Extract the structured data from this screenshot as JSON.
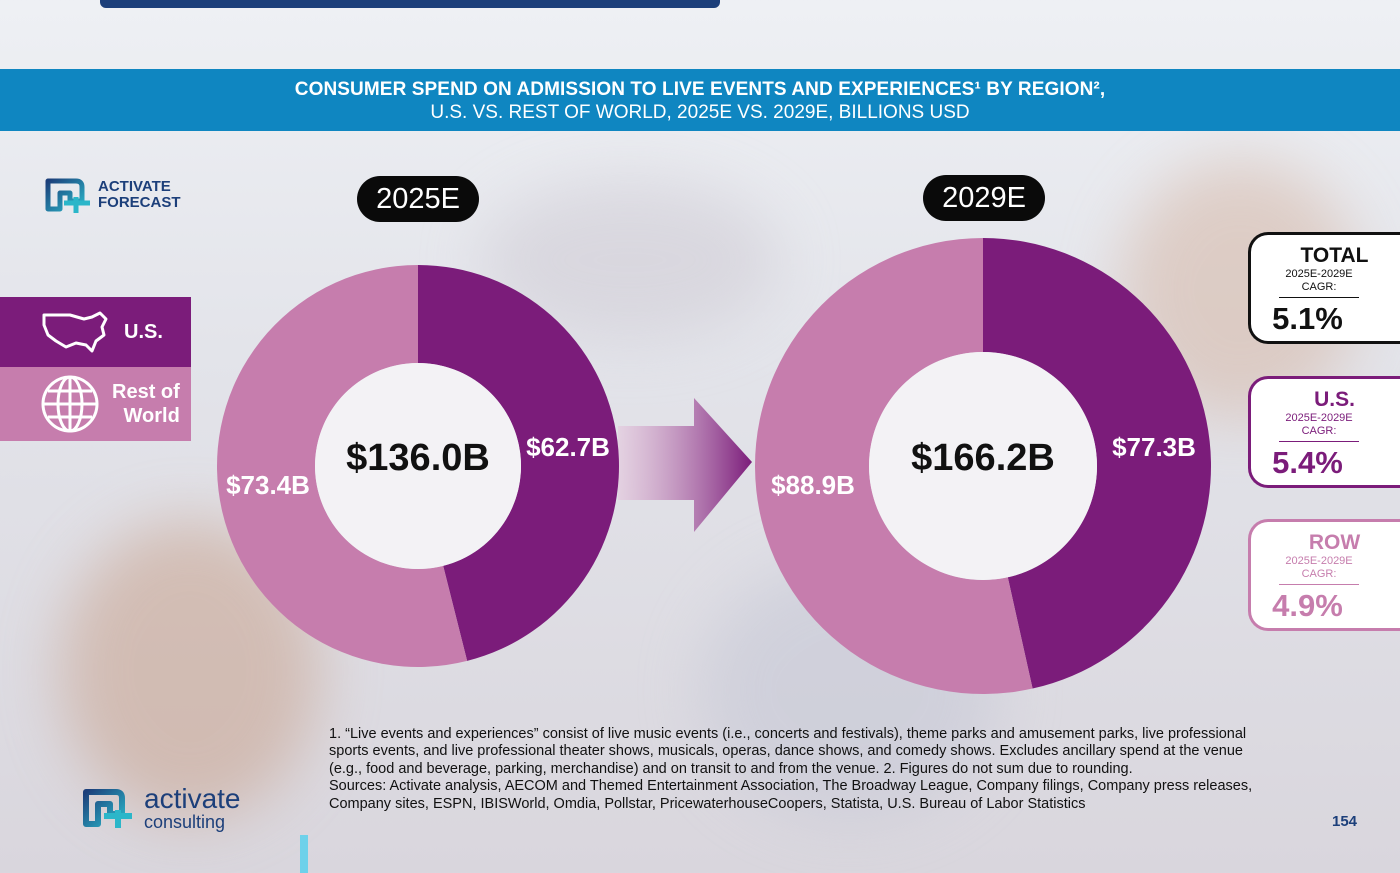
{
  "banner": {
    "line1": "CONSUMER SPEND ON ADMISSION TO LIVE EVENTS AND EXPERIENCES¹ BY REGION²,",
    "line2": "U.S. VS. REST OF WORLD, 2025E VS. 2029E, BILLIONS USD"
  },
  "forecast_badge": {
    "line1": "ACTIVATE",
    "line2": "FORECAST"
  },
  "legend": {
    "us": "U.S.",
    "row_line1": "Rest of",
    "row_line2": "World"
  },
  "colors": {
    "us": "#7b1c7a",
    "row": "#c67dad",
    "banner": "#0f86c1",
    "navy": "#1c3f7a"
  },
  "chart_data": [
    {
      "type": "pie",
      "title": "2025E",
      "total_label": "$136.0B",
      "categories": [
        "U.S.",
        "Rest of World"
      ],
      "values": [
        62.7,
        73.4
      ],
      "data_labels": [
        "$62.7B",
        "$73.4B"
      ]
    },
    {
      "type": "pie",
      "title": "2029E",
      "total_label": "$166.2B",
      "categories": [
        "U.S.",
        "Rest of World"
      ],
      "values": [
        77.3,
        88.9
      ],
      "data_labels": [
        "$77.3B",
        "$88.9B"
      ]
    }
  ],
  "cagr": {
    "total": {
      "head": "TOTAL",
      "period": "2025E-2029E",
      "label": "CAGR:",
      "value": "5.1%"
    },
    "us": {
      "head": "U.S.",
      "period": "2025E-2029E",
      "label": "CAGR:",
      "value": "5.4%"
    },
    "row": {
      "head": "ROW",
      "period": "2025E-2029E",
      "label": "CAGR:",
      "value": "4.9%"
    }
  },
  "footnote": {
    "notes": "1. “Live events and experiences” consist of live music events (i.e., concerts and festivals), theme parks and amusement parks, live professional sports events, and live professional theater shows, musicals, operas, dance shows, and comedy shows. Excludes ancillary spend at the venue (e.g., food and beverage, parking, merchandise) and on transit to and from the venue.  2. Figures do not sum due to rounding.",
    "sources": "Sources: Activate analysis, AECOM and Themed Entertainment Association, The Broadway League, Company filings, Company press releases, Company sites, ESPN, IBISWorld, Omdia, Pollstar, PricewaterhouseCoopers, Statista, U.S. Bureau of Labor Statistics"
  },
  "page_number": "154",
  "brand": {
    "line1": "activate",
    "line2": "consulting"
  }
}
